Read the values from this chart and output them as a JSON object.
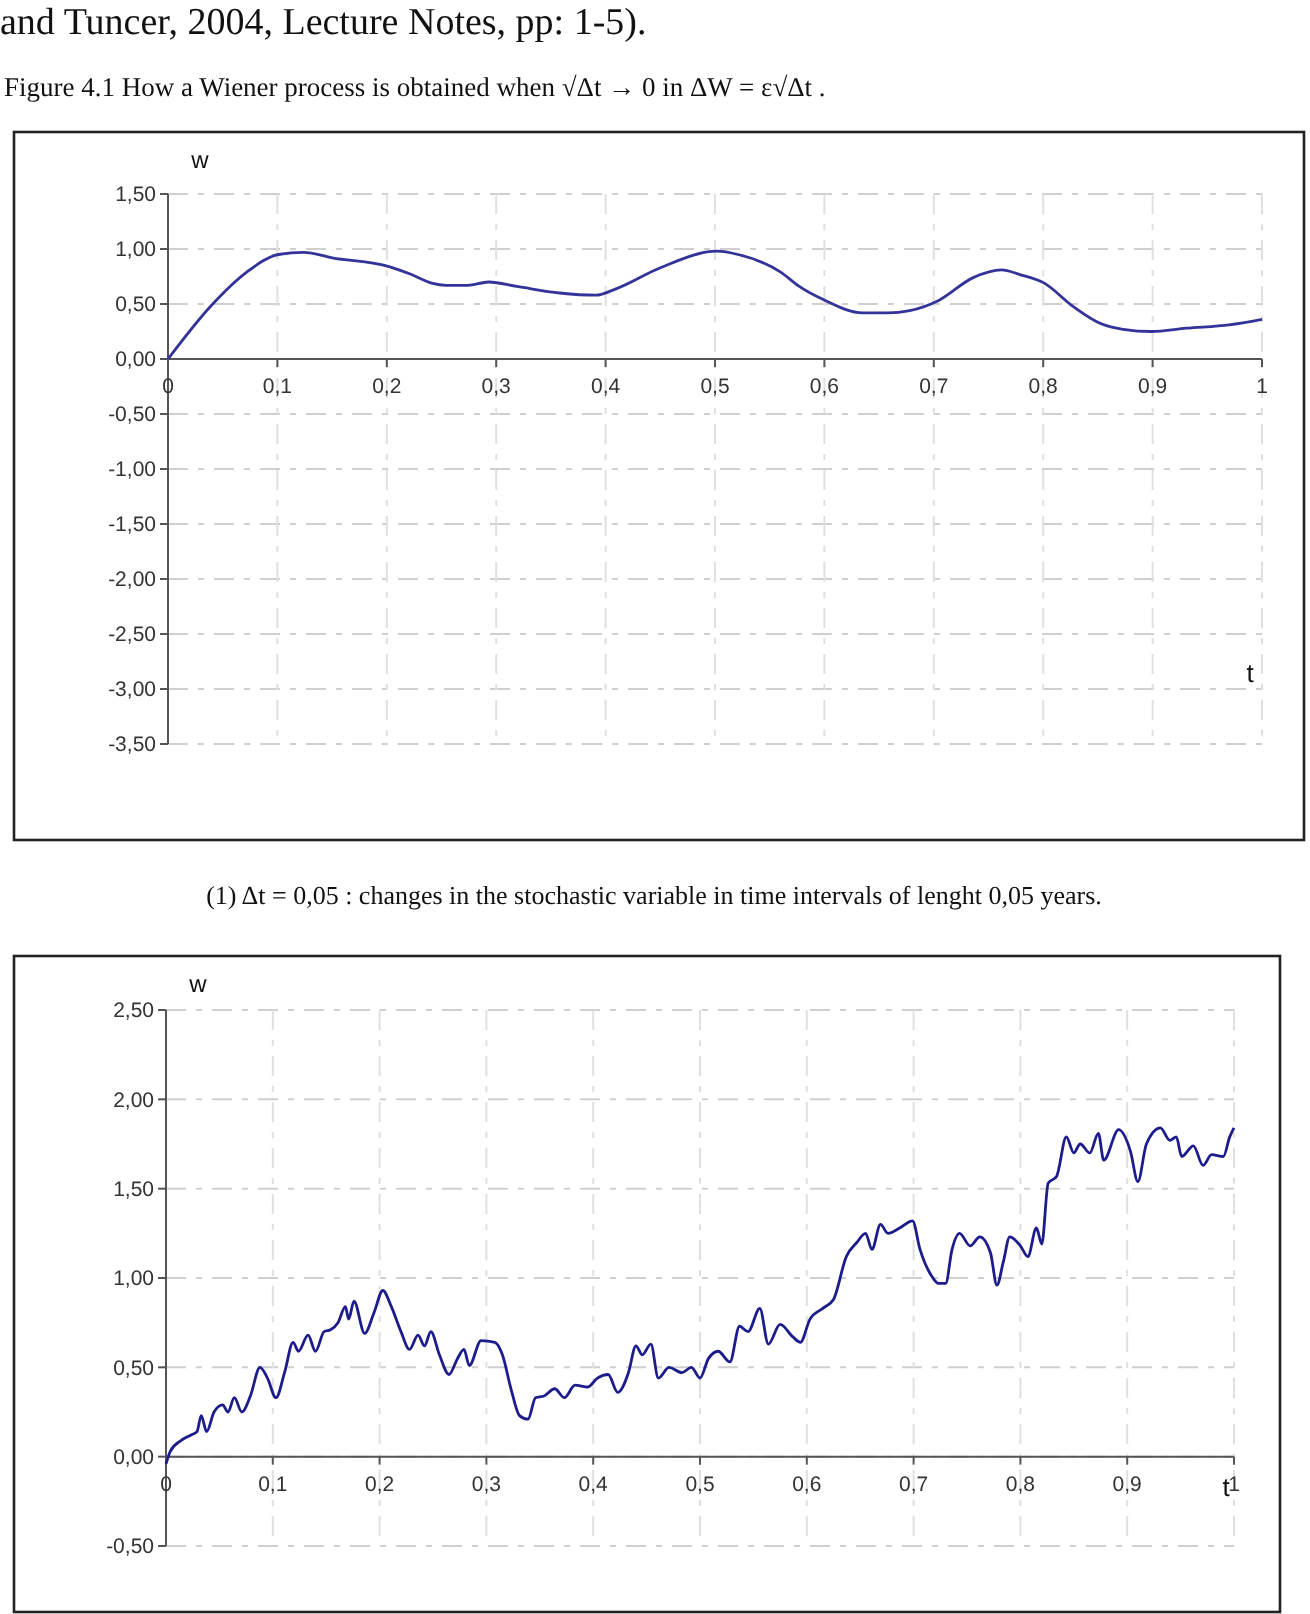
{
  "chart_data": [
    {
      "type": "line",
      "title": "Figure 4.1 How a Wiener process is obtained when √Δt → 0 in ΔW = ε√Δt .",
      "annotations": [
        "and Tuncer, 2004, Lecture Notes, pp: 1-5).",
        "(1) Δt = 0,05 : changes in the stochastic variable in time intervals of lenght 0,05 years."
      ],
      "xlabel": "t",
      "ylabel": "w",
      "grid": true,
      "x": [
        0,
        0.039,
        0.072,
        0.101,
        0.124,
        0.15,
        0.202,
        0.222,
        0.241,
        0.254,
        0.274,
        0.293,
        0.319,
        0.358,
        0.391,
        0.41,
        0.45,
        0.502,
        0.521,
        0.56,
        0.577,
        0.599,
        0.635,
        0.658,
        0.678,
        0.704,
        0.736,
        0.762,
        0.778,
        0.801,
        0.827,
        0.853,
        0.873,
        0.899,
        0.931,
        0.97,
        1
      ],
      "series": [
        {
          "color": "#333399",
          "values": [
            0,
            0.48,
            0.79,
            0.95,
            0.97,
            0.92,
            0.84,
            0.77,
            0.69,
            0.67,
            0.67,
            0.7,
            0.66,
            0.6,
            0.58,
            0.64,
            0.83,
            0.98,
            0.95,
            0.79,
            0.66,
            0.54,
            0.42,
            0.42,
            0.44,
            0.53,
            0.74,
            0.81,
            0.77,
            0.69,
            0.48,
            0.32,
            0.27,
            0.25,
            0.28,
            0.31,
            0.36
          ]
        }
      ],
      "xlim": [
        0,
        1
      ],
      "ylim": [
        -3.5,
        1.5
      ],
      "xticks": [
        {
          "value": 0,
          "label": "0"
        },
        {
          "value": 0.1,
          "label": "0,1"
        },
        {
          "value": 0.2,
          "label": "0,2"
        },
        {
          "value": 0.3,
          "label": "0,3"
        },
        {
          "value": 0.4,
          "label": "0,4"
        },
        {
          "value": 0.5,
          "label": "0,5"
        },
        {
          "value": 0.6,
          "label": "0,6"
        },
        {
          "value": 0.7,
          "label": "0,7"
        },
        {
          "value": 0.8,
          "label": "0,8"
        },
        {
          "value": 0.9,
          "label": "0,9"
        },
        {
          "value": 1,
          "label": "1"
        }
      ],
      "yticks": [
        {
          "value": -3.5,
          "label": "-3,50"
        },
        {
          "value": -3,
          "label": "-3,00"
        },
        {
          "value": -2.5,
          "label": "-2,50"
        },
        {
          "value": -2,
          "label": "-2,00"
        },
        {
          "value": -1.5,
          "label": "-1,50"
        },
        {
          "value": -1,
          "label": "-1,00"
        },
        {
          "value": -0.5,
          "label": "-0,50"
        },
        {
          "value": 0,
          "label": "0,00"
        },
        {
          "value": 0.5,
          "label": "0,50"
        },
        {
          "value": 1,
          "label": "1,00"
        },
        {
          "value": 1.5,
          "label": "1,50"
        }
      ]
    },
    {
      "type": "line",
      "xlabel": "t",
      "ylabel": "w",
      "grid": true,
      "x": [
        0,
        0.004,
        0.014,
        0.023,
        0.029,
        0.033,
        0.038,
        0.045,
        0.053,
        0.058,
        0.064,
        0.071,
        0.079,
        0.088,
        0.095,
        0.103,
        0.111,
        0.119,
        0.124,
        0.133,
        0.14,
        0.148,
        0.154,
        0.161,
        0.168,
        0.171,
        0.176,
        0.186,
        0.195,
        0.203,
        0.211,
        0.22,
        0.228,
        0.236,
        0.242,
        0.248,
        0.256,
        0.265,
        0.273,
        0.279,
        0.284,
        0.295,
        0.308,
        0.315,
        0.323,
        0.331,
        0.339,
        0.346,
        0.354,
        0.364,
        0.373,
        0.383,
        0.395,
        0.404,
        0.414,
        0.423,
        0.433,
        0.44,
        0.446,
        0.454,
        0.461,
        0.471,
        0.483,
        0.492,
        0.5,
        0.508,
        0.517,
        0.528,
        0.537,
        0.545,
        0.556,
        0.564,
        0.575,
        0.587,
        0.594,
        0.603,
        0.615,
        0.625,
        0.637,
        0.647,
        0.655,
        0.661,
        0.669,
        0.676,
        0.687,
        0.699,
        0.706,
        0.717,
        0.723,
        0.73,
        0.736,
        0.743,
        0.753,
        0.762,
        0.772,
        0.778,
        0.784,
        0.79,
        0.8,
        0.807,
        0.815,
        0.82,
        0.826,
        0.834,
        0.843,
        0.85,
        0.856,
        0.865,
        0.873,
        0.878,
        0.892,
        0.903,
        0.91,
        0.918,
        0.931,
        0.94,
        0.946,
        0.951,
        0.962,
        0.971,
        0.979,
        0.99,
        0.996,
        1
      ],
      "series": [
        {
          "color": "#1c1c8c",
          "values": [
            -0.04,
            0.03,
            0.09,
            0.12,
            0.14,
            0.23,
            0.14,
            0.25,
            0.29,
            0.25,
            0.33,
            0.25,
            0.34,
            0.5,
            0.44,
            0.33,
            0.47,
            0.64,
            0.59,
            0.68,
            0.59,
            0.7,
            0.71,
            0.75,
            0.84,
            0.77,
            0.87,
            0.69,
            0.81,
            0.93,
            0.84,
            0.7,
            0.6,
            0.68,
            0.62,
            0.7,
            0.57,
            0.46,
            0.55,
            0.6,
            0.51,
            0.65,
            0.64,
            0.57,
            0.38,
            0.23,
            0.21,
            0.33,
            0.34,
            0.38,
            0.33,
            0.4,
            0.39,
            0.44,
            0.46,
            0.36,
            0.47,
            0.62,
            0.57,
            0.63,
            0.44,
            0.5,
            0.47,
            0.5,
            0.44,
            0.55,
            0.59,
            0.53,
            0.73,
            0.7,
            0.83,
            0.63,
            0.74,
            0.67,
            0.64,
            0.77,
            0.83,
            0.88,
            1.12,
            1.2,
            1.25,
            1.16,
            1.3,
            1.25,
            1.28,
            1.32,
            1.16,
            1.01,
            0.97,
            0.97,
            1.16,
            1.25,
            1.18,
            1.23,
            1.14,
            0.96,
            1.09,
            1.23,
            1.18,
            1.12,
            1.28,
            1.19,
            1.53,
            1.57,
            1.79,
            1.7,
            1.75,
            1.7,
            1.81,
            1.66,
            1.83,
            1.71,
            1.54,
            1.75,
            1.84,
            1.77,
            1.79,
            1.68,
            1.74,
            1.63,
            1.69,
            1.68,
            1.79,
            1.84
          ]
        }
      ],
      "xlim": [
        0,
        1
      ],
      "ylim": [
        -0.5,
        2.5
      ],
      "xticks": [
        {
          "value": 0,
          "label": "0"
        },
        {
          "value": 0.1,
          "label": "0,1"
        },
        {
          "value": 0.2,
          "label": "0,2"
        },
        {
          "value": 0.3,
          "label": "0,3"
        },
        {
          "value": 0.4,
          "label": "0,4"
        },
        {
          "value": 0.5,
          "label": "0,5"
        },
        {
          "value": 0.6,
          "label": "0,6"
        },
        {
          "value": 0.7,
          "label": "0,7"
        },
        {
          "value": 0.8,
          "label": "0,8"
        },
        {
          "value": 0.9,
          "label": "0,9"
        },
        {
          "value": 1,
          "label": "1"
        }
      ],
      "yticks": [
        {
          "value": -0.5,
          "label": "-0,50"
        },
        {
          "value": 0,
          "label": "0,00"
        },
        {
          "value": 0.5,
          "label": "0,50"
        },
        {
          "value": 1,
          "label": "1,00"
        },
        {
          "value": 1.5,
          "label": "1,50"
        },
        {
          "value": 2,
          "label": "2,00"
        },
        {
          "value": 2.5,
          "label": "2,50"
        }
      ]
    }
  ]
}
